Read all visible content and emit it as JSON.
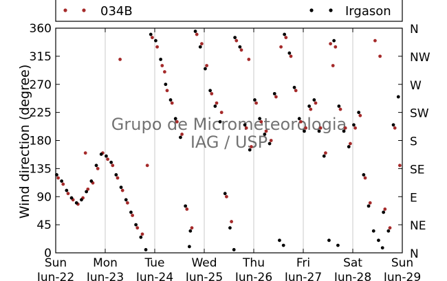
{
  "chart_data": {
    "type": "scatter",
    "xlabel": "",
    "ylabel": "Wind direction (degree)",
    "ylim": [
      0,
      360
    ],
    "xlim_days": [
      22,
      29
    ],
    "x_ticks": [
      {
        "day": 22,
        "line1": "Sun",
        "line2": "Jun-22"
      },
      {
        "day": 23,
        "line1": "Mon",
        "line2": "Jun-23"
      },
      {
        "day": 24,
        "line1": "Tue",
        "line2": "Jun-24"
      },
      {
        "day": 25,
        "line1": "Wed",
        "line2": "Jun-25"
      },
      {
        "day": 26,
        "line1": "Thu",
        "line2": "Jun-26"
      },
      {
        "day": 27,
        "line1": "Fri",
        "line2": "Jun-27"
      },
      {
        "day": 28,
        "line1": "Sat",
        "line2": "Jun-28"
      },
      {
        "day": 29,
        "line1": "Sun",
        "line2": "Jun-29"
      }
    ],
    "y_ticks_left": [
      0,
      45,
      90,
      135,
      180,
      225,
      270,
      315,
      360
    ],
    "y_ticks_right": [
      {
        "value": 0,
        "label": "N"
      },
      {
        "value": 45,
        "label": "NE"
      },
      {
        "value": 90,
        "label": "E"
      },
      {
        "value": 135,
        "label": "SE"
      },
      {
        "value": 180,
        "label": "S"
      },
      {
        "value": 225,
        "label": "SW"
      },
      {
        "value": 270,
        "label": "W"
      },
      {
        "value": 315,
        "label": "NW"
      },
      {
        "value": 360,
        "label": "N"
      }
    ],
    "grid": "vertical-at-day-ticks",
    "legend_placement": "top",
    "series": [
      {
        "name": "034B",
        "color": "#a52a2a",
        "points": [
          [
            22.05,
            120
          ],
          [
            22.15,
            110
          ],
          [
            22.25,
            95
          ],
          [
            22.35,
            85
          ],
          [
            22.45,
            78
          ],
          [
            22.55,
            88
          ],
          [
            22.65,
            102
          ],
          [
            22.75,
            112
          ],
          [
            22.85,
            135
          ],
          [
            22.95,
            160
          ],
          [
            23.05,
            150
          ],
          [
            23.15,
            140
          ],
          [
            23.25,
            120
          ],
          [
            23.35,
            100
          ],
          [
            23.45,
            80
          ],
          [
            23.55,
            60
          ],
          [
            23.65,
            40
          ],
          [
            23.75,
            30
          ],
          [
            23.85,
            140
          ],
          [
            23.95,
            345
          ],
          [
            24.05,
            330
          ],
          [
            24.15,
            300
          ],
          [
            24.25,
            260
          ],
          [
            24.35,
            240
          ],
          [
            24.45,
            210
          ],
          [
            24.55,
            190
          ],
          [
            24.65,
            70
          ],
          [
            24.75,
            40
          ],
          [
            24.85,
            350
          ],
          [
            24.95,
            335
          ],
          [
            25.05,
            300
          ],
          [
            25.15,
            255
          ],
          [
            25.25,
            240
          ],
          [
            25.35,
            225
          ],
          [
            25.45,
            90
          ],
          [
            25.55,
            50
          ],
          [
            25.65,
            340
          ],
          [
            25.75,
            325
          ],
          [
            25.85,
            200
          ],
          [
            25.95,
            170
          ],
          [
            26.05,
            240
          ],
          [
            26.15,
            210
          ],
          [
            26.25,
            195
          ],
          [
            26.35,
            180
          ],
          [
            26.45,
            250
          ],
          [
            26.55,
            330
          ],
          [
            26.65,
            345
          ],
          [
            26.75,
            315
          ],
          [
            26.85,
            260
          ],
          [
            26.95,
            210
          ],
          [
            27.05,
            200
          ],
          [
            27.15,
            230
          ],
          [
            27.25,
            240
          ],
          [
            27.35,
            200
          ],
          [
            27.45,
            160
          ],
          [
            27.55,
            335
          ],
          [
            27.65,
            330
          ],
          [
            27.75,
            230
          ],
          [
            27.85,
            200
          ],
          [
            27.95,
            175
          ],
          [
            28.05,
            200
          ],
          [
            28.15,
            220
          ],
          [
            28.25,
            120
          ],
          [
            28.35,
            80
          ],
          [
            28.45,
            340
          ],
          [
            28.55,
            315
          ],
          [
            28.65,
            70
          ],
          [
            28.75,
            40
          ],
          [
            28.85,
            200
          ],
          [
            28.95,
            140
          ],
          [
            23.3,
            310
          ],
          [
            22.6,
            160
          ],
          [
            24.2,
            290
          ],
          [
            25.9,
            310
          ],
          [
            27.6,
            300
          ]
        ]
      },
      {
        "name": "Irgason",
        "color": "#000000",
        "points": [
          [
            22.02,
            125
          ],
          [
            22.12,
            115
          ],
          [
            22.22,
            100
          ],
          [
            22.32,
            88
          ],
          [
            22.42,
            80
          ],
          [
            22.52,
            85
          ],
          [
            22.62,
            98
          ],
          [
            22.72,
            115
          ],
          [
            22.82,
            140
          ],
          [
            22.92,
            158
          ],
          [
            23.02,
            155
          ],
          [
            23.12,
            145
          ],
          [
            23.22,
            125
          ],
          [
            23.32,
            105
          ],
          [
            23.42,
            85
          ],
          [
            23.52,
            65
          ],
          [
            23.62,
            45
          ],
          [
            23.72,
            25
          ],
          [
            23.82,
            5
          ],
          [
            23.92,
            350
          ],
          [
            24.02,
            340
          ],
          [
            24.12,
            310
          ],
          [
            24.22,
            270
          ],
          [
            24.32,
            245
          ],
          [
            24.42,
            215
          ],
          [
            24.52,
            185
          ],
          [
            24.62,
            75
          ],
          [
            24.72,
            35
          ],
          [
            24.82,
            355
          ],
          [
            24.92,
            330
          ],
          [
            25.02,
            295
          ],
          [
            25.12,
            260
          ],
          [
            25.22,
            235
          ],
          [
            25.32,
            210
          ],
          [
            25.42,
            95
          ],
          [
            25.52,
            40
          ],
          [
            25.62,
            345
          ],
          [
            25.72,
            330
          ],
          [
            25.82,
            205
          ],
          [
            25.92,
            165
          ],
          [
            26.02,
            245
          ],
          [
            26.12,
            215
          ],
          [
            26.22,
            190
          ],
          [
            26.32,
            175
          ],
          [
            26.42,
            255
          ],
          [
            26.52,
            20
          ],
          [
            26.62,
            350
          ],
          [
            26.72,
            320
          ],
          [
            26.82,
            265
          ],
          [
            26.92,
            215
          ],
          [
            27.02,
            195
          ],
          [
            27.12,
            235
          ],
          [
            27.22,
            245
          ],
          [
            27.32,
            195
          ],
          [
            27.42,
            155
          ],
          [
            27.52,
            20
          ],
          [
            27.62,
            340
          ],
          [
            27.72,
            235
          ],
          [
            27.82,
            195
          ],
          [
            27.92,
            170
          ],
          [
            28.02,
            205
          ],
          [
            28.12,
            225
          ],
          [
            28.22,
            125
          ],
          [
            28.32,
            75
          ],
          [
            28.42,
            35
          ],
          [
            28.52,
            20
          ],
          [
            28.62,
            65
          ],
          [
            28.72,
            35
          ],
          [
            28.82,
            205
          ],
          [
            28.92,
            250
          ],
          [
            24.7,
            10
          ],
          [
            25.6,
            5
          ],
          [
            26.6,
            12
          ],
          [
            28.6,
            8
          ],
          [
            27.7,
            12
          ]
        ]
      }
    ]
  },
  "watermark": {
    "line1": "Grupo de Micrometeorologia",
    "line2": "IAG / USP"
  }
}
